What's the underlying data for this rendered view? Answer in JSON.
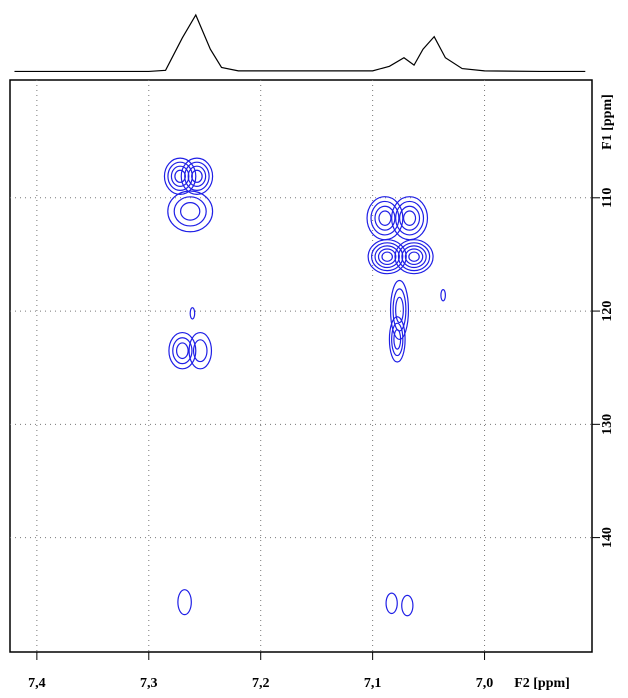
{
  "chart_data": {
    "type": "contour",
    "xlabel": "F2 [ppm]",
    "ylabel": "F1 [ppm]",
    "xlim": [
      7.424,
      6.904
    ],
    "ylim": [
      99.6,
      150.1
    ],
    "xticks": [
      {
        "value": 7.4,
        "label": "7,4"
      },
      {
        "value": 7.3,
        "label": "7,3"
      },
      {
        "value": 7.2,
        "label": "7,2"
      },
      {
        "value": 7.1,
        "label": "7,1"
      },
      {
        "value": 7.0,
        "label": "7,0"
      }
    ],
    "yticks": [
      110,
      120,
      130,
      140
    ],
    "grid": true,
    "color": "#1f1fe6",
    "peaks": {
      "x": [
        7.272,
        7.257,
        7.263,
        7.27,
        7.254,
        7.261,
        7.089,
        7.067,
        7.087,
        7.063,
        7.076,
        7.078,
        7.037,
        7.268,
        7.083,
        7.069
      ],
      "values": [
        108.1,
        108.1,
        111.2,
        123.5,
        123.5,
        120.2,
        111.8,
        111.8,
        115.2,
        115.2,
        119.9,
        122.5,
        118.6,
        145.7,
        145.8,
        146.0
      ],
      "width": [
        0.014,
        0.014,
        0.02,
        0.012,
        0.01,
        0.002,
        0.016,
        0.016,
        0.017,
        0.017,
        0.008,
        0.007,
        0.002,
        0.006,
        0.005,
        0.005
      ],
      "height": [
        1.6,
        1.6,
        1.8,
        1.6,
        1.6,
        0.5,
        1.9,
        1.9,
        1.5,
        1.5,
        2.6,
        2.0,
        0.5,
        1.1,
        0.9,
        0.9
      ],
      "levels": [
        4,
        4,
        3,
        3,
        2,
        1,
        4,
        4,
        5,
        5,
        3,
        3,
        1,
        1,
        1,
        1
      ]
    },
    "projection": {
      "color": "#000000",
      "x": [
        7.42,
        7.3,
        7.285,
        7.27,
        7.258,
        7.245,
        7.235,
        7.22,
        7.1,
        7.085,
        7.072,
        7.063,
        7.055,
        7.045,
        7.035,
        7.02,
        7.0,
        6.95,
        6.91
      ],
      "values": [
        1,
        1,
        3,
        60,
        100,
        40,
        8,
        2,
        2,
        10,
        25,
        12,
        40,
        62,
        25,
        6,
        2,
        1,
        1
      ]
    }
  }
}
